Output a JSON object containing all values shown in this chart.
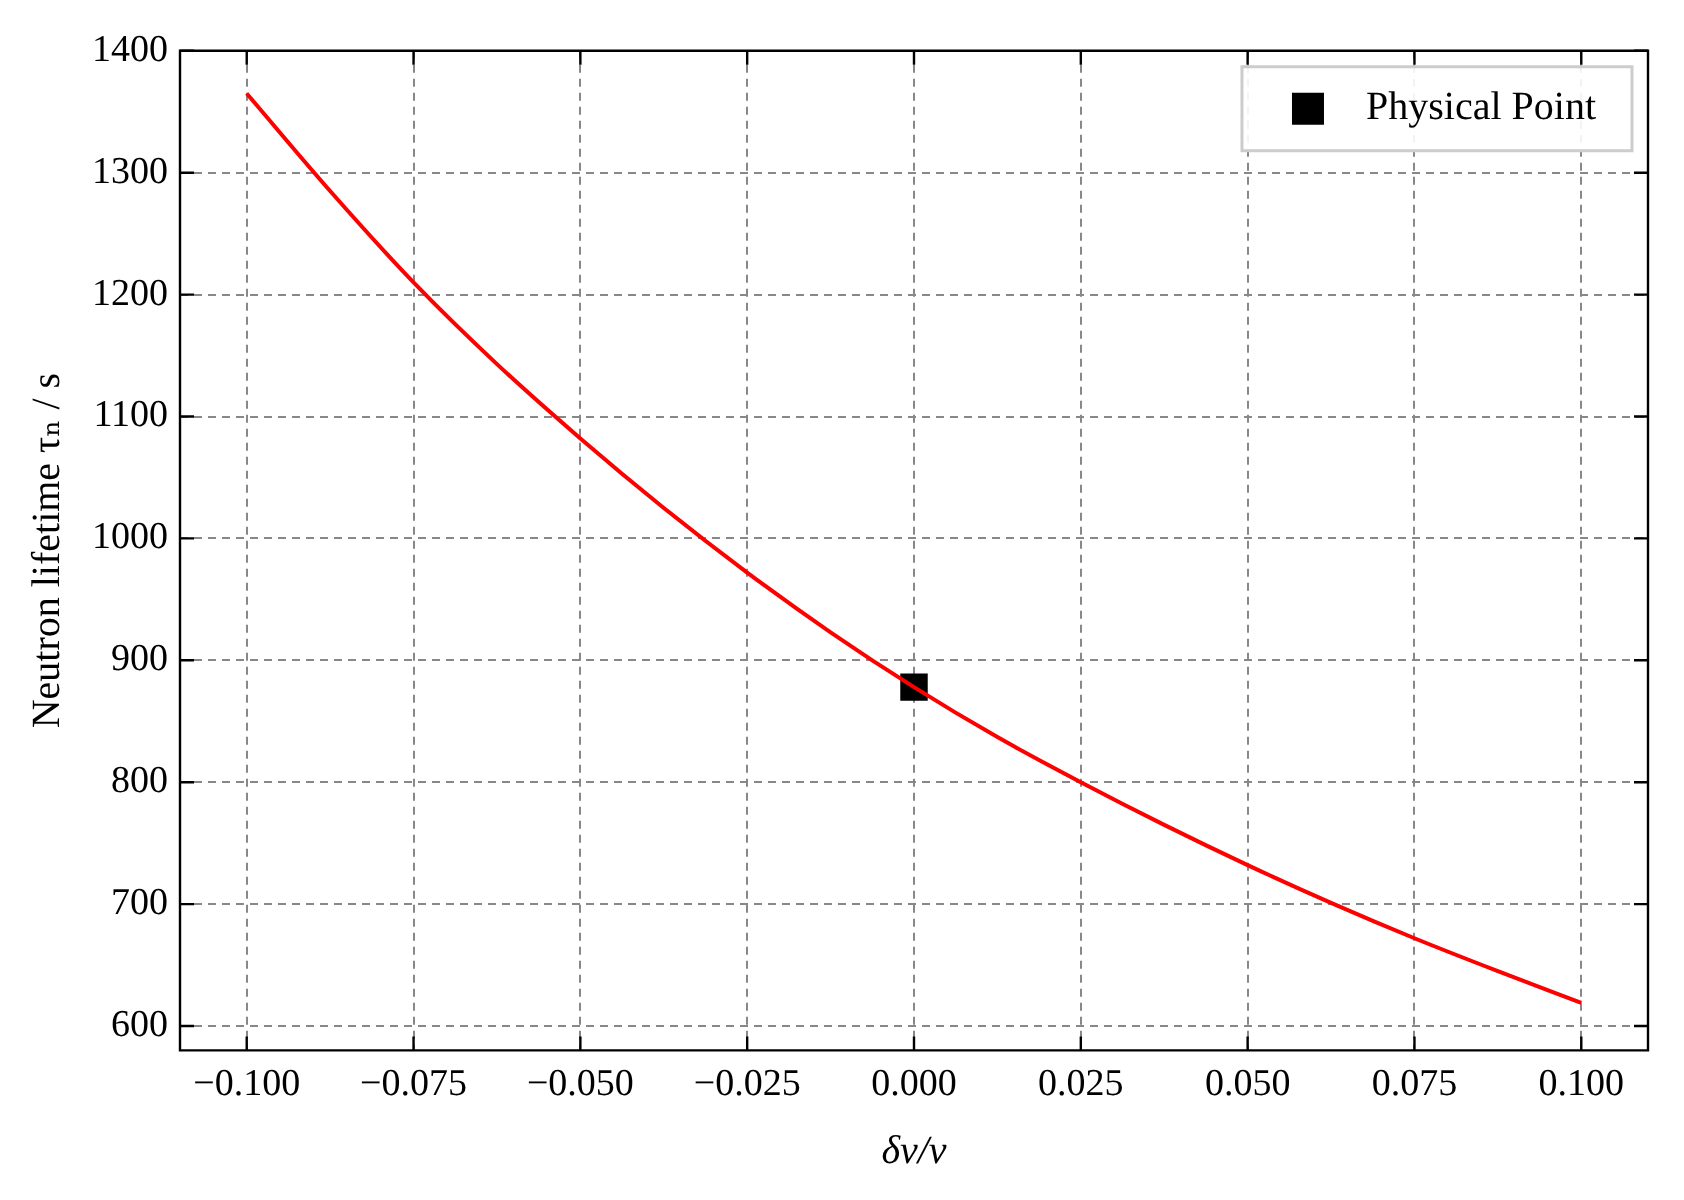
{
  "chart_data": {
    "type": "line",
    "xlabel": "δv/v",
    "ylabel": "Neutron lifetime τₙ / s",
    "xlim": [
      -0.11,
      0.11
    ],
    "ylim": [
      580,
      1400
    ],
    "xticks": [
      {
        "value": -0.1,
        "label": "−0.100"
      },
      {
        "value": -0.075,
        "label": "−0.075"
      },
      {
        "value": -0.05,
        "label": "−0.050"
      },
      {
        "value": -0.025,
        "label": "−0.025"
      },
      {
        "value": 0,
        "label": "0.000"
      },
      {
        "value": 0.025,
        "label": "0.025"
      },
      {
        "value": 0.05,
        "label": "0.050"
      },
      {
        "value": 0.075,
        "label": "0.075"
      },
      {
        "value": 0.1,
        "label": "0.100"
      }
    ],
    "yticks": [
      600,
      700,
      800,
      900,
      1000,
      1100,
      1200,
      1300,
      1400
    ],
    "grid": true,
    "legend": "top right",
    "line_style": "solid",
    "series": [
      {
        "color": "#ff0000",
        "marker": "none",
        "x": [
          -0.1,
          -0.0875,
          -0.075,
          -0.0625,
          -0.05,
          -0.0375,
          -0.025,
          -0.0125,
          0,
          0.0125,
          0.025,
          0.0375,
          0.05,
          0.0625,
          0.075,
          0.0875,
          0.1
        ],
        "values": [
          1365,
          1285,
          1210,
          1143,
          1082,
          1025,
          972,
          923,
          878,
          837,
          800,
          765,
          732,
          701,
          672,
          645,
          619
        ]
      },
      {
        "type": "scatter",
        "name": "Physical Point",
        "color": "#000000",
        "marker": "square",
        "x": [
          0
        ],
        "values": [
          878
        ]
      }
    ]
  }
}
